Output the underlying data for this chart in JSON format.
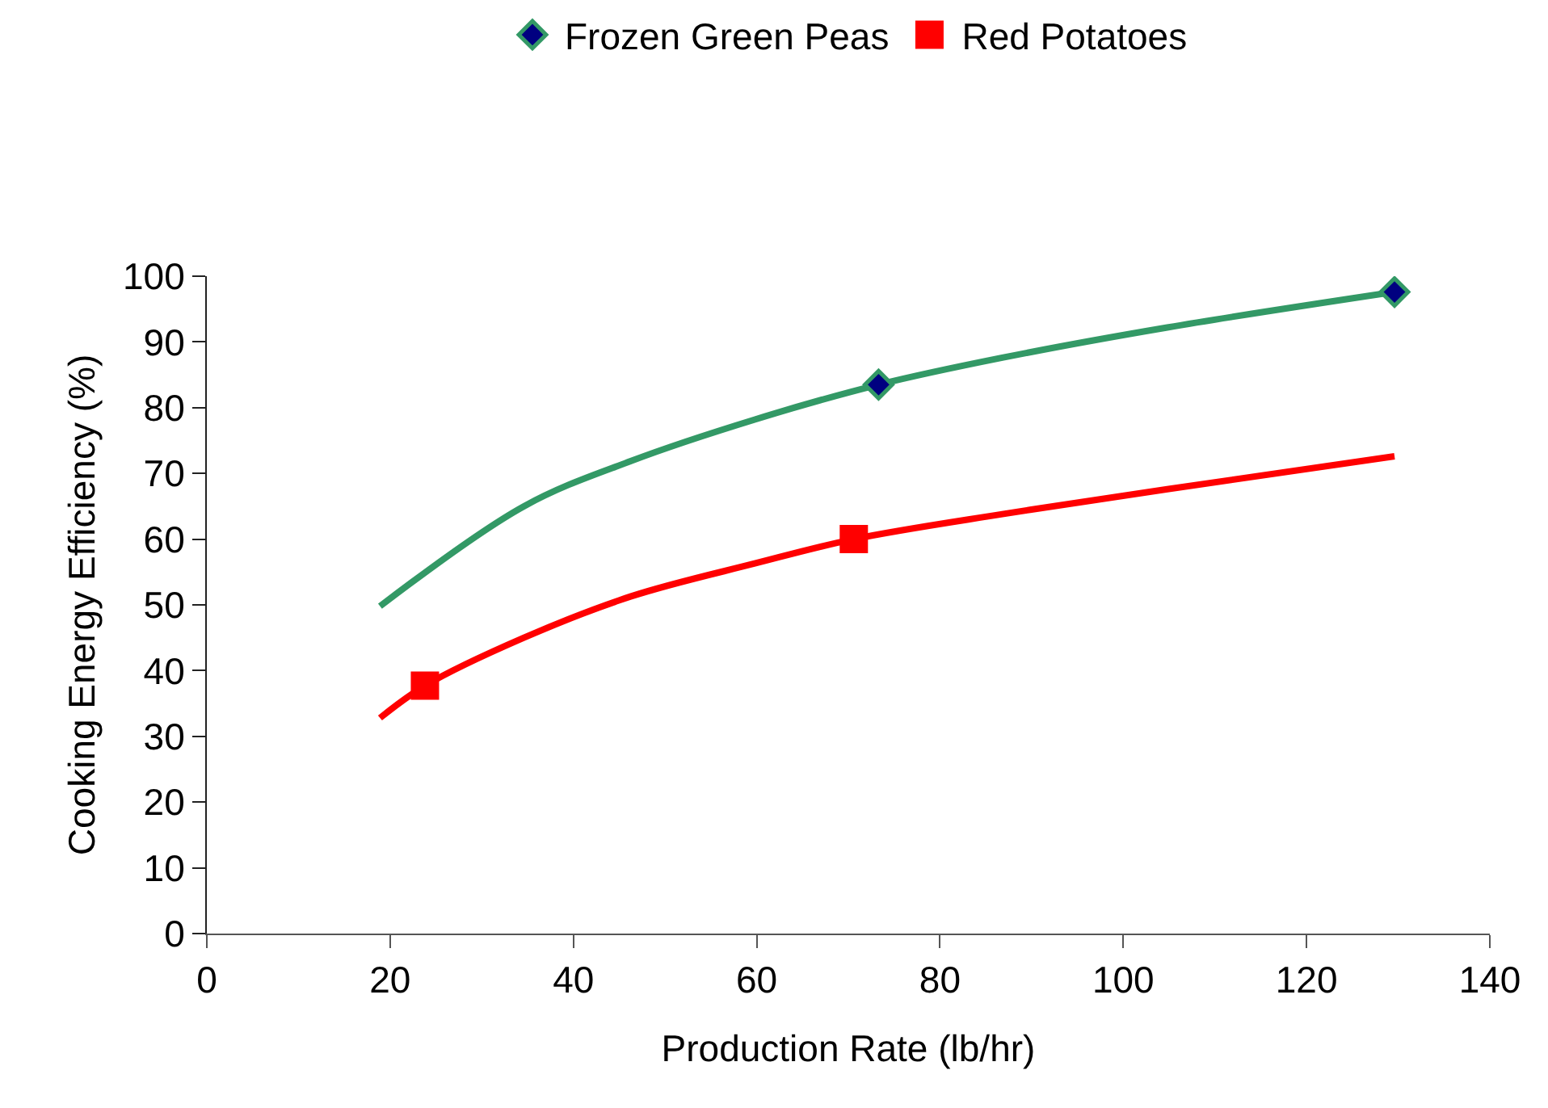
{
  "chart_data": {
    "type": "scatter",
    "xlabel": "Production Rate (lb/hr)",
    "ylabel": "Cooking Energy Efficiency (%)",
    "xlim": [
      0,
      140
    ],
    "xticks": [
      0,
      20,
      40,
      60,
      80,
      100,
      120,
      140
    ],
    "ylim": [
      0,
      100
    ],
    "yticks": [
      0,
      10,
      20,
      30,
      40,
      50,
      60,
      70,
      80,
      90,
      100
    ],
    "grid": false,
    "legend": "top",
    "series": [
      {
        "name": "Frozen Green Peas",
        "marker": "diamond",
        "color": "#339966",
        "x": [
          73.3,
          129.6
        ],
        "values": [
          83.5,
          97.6
        ]
      },
      {
        "name": "Red Potatoes",
        "marker": "square",
        "color": "#ff0000",
        "x": [
          23.8,
          70.6
        ],
        "values": [
          37.7,
          60.0
        ]
      },
      {
        "type": "line",
        "marker": "none",
        "color": "#339966",
        "x": [
          18.9,
          34.6,
          46.3,
          59.8,
          73.3,
          86.8,
          104.8,
          129.6
        ],
        "values": [
          49.8,
          65.0,
          71.9,
          78.2,
          83.5,
          87.6,
          92.2,
          97.6
        ]
      },
      {
        "type": "line",
        "marker": "none",
        "color": "#ff0000",
        "x": [
          18.9,
          23.8,
          34.6,
          46.3,
          59.8,
          70.6,
          86.8,
          104.8,
          129.6
        ],
        "values": [
          32.8,
          37.7,
          45.0,
          51.3,
          56.3,
          60.0,
          63.8,
          67.6,
          72.6
        ]
      }
    ]
  }
}
